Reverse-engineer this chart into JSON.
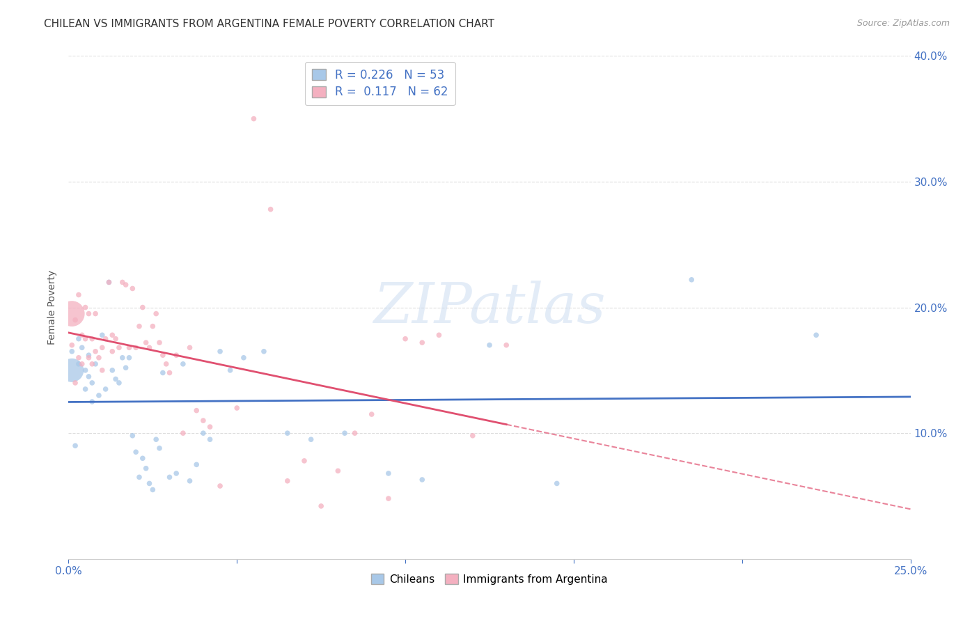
{
  "title": "CHILEAN VS IMMIGRANTS FROM ARGENTINA FEMALE POVERTY CORRELATION CHART",
  "source": "Source: ZipAtlas.com",
  "ylabel": "Female Poverty",
  "xmin": 0.0,
  "xmax": 0.25,
  "ymin": 0.0,
  "ymax": 0.4,
  "xticks": [
    0.0,
    0.05,
    0.1,
    0.15,
    0.2,
    0.25
  ],
  "yticks": [
    0.0,
    0.1,
    0.2,
    0.3,
    0.4
  ],
  "blue_series": {
    "name": "Chileans",
    "color": "#a8c8e8",
    "line_color": "#4472c4",
    "R": 0.226,
    "N": 53,
    "x": [
      0.001,
      0.001,
      0.002,
      0.003,
      0.003,
      0.004,
      0.005,
      0.005,
      0.006,
      0.006,
      0.007,
      0.007,
      0.008,
      0.009,
      0.01,
      0.011,
      0.012,
      0.013,
      0.014,
      0.015,
      0.016,
      0.017,
      0.018,
      0.019,
      0.02,
      0.021,
      0.022,
      0.023,
      0.024,
      0.025,
      0.026,
      0.027,
      0.028,
      0.03,
      0.032,
      0.034,
      0.036,
      0.038,
      0.04,
      0.042,
      0.045,
      0.048,
      0.052,
      0.058,
      0.065,
      0.072,
      0.082,
      0.095,
      0.105,
      0.125,
      0.145,
      0.185,
      0.222
    ],
    "y": [
      0.15,
      0.165,
      0.09,
      0.155,
      0.175,
      0.168,
      0.135,
      0.15,
      0.145,
      0.162,
      0.14,
      0.125,
      0.155,
      0.13,
      0.178,
      0.135,
      0.22,
      0.15,
      0.143,
      0.14,
      0.16,
      0.152,
      0.16,
      0.098,
      0.085,
      0.065,
      0.08,
      0.072,
      0.06,
      0.055,
      0.095,
      0.088,
      0.148,
      0.065,
      0.068,
      0.155,
      0.062,
      0.075,
      0.1,
      0.095,
      0.165,
      0.15,
      0.16,
      0.165,
      0.1,
      0.095,
      0.1,
      0.068,
      0.063,
      0.17,
      0.06,
      0.222,
      0.178
    ],
    "sizes": [
      600,
      30,
      30,
      30,
      30,
      30,
      30,
      30,
      30,
      30,
      30,
      30,
      30,
      30,
      30,
      30,
      30,
      30,
      30,
      30,
      30,
      30,
      30,
      30,
      30,
      30,
      30,
      30,
      30,
      30,
      30,
      30,
      30,
      30,
      30,
      30,
      30,
      30,
      30,
      30,
      30,
      30,
      30,
      30,
      30,
      30,
      30,
      30,
      30,
      30,
      30,
      30,
      30
    ]
  },
  "pink_series": {
    "name": "Immigrants from Argentina",
    "color": "#f4b0c0",
    "line_color": "#e05070",
    "R": 0.117,
    "N": 62,
    "x": [
      0.001,
      0.001,
      0.002,
      0.002,
      0.003,
      0.003,
      0.004,
      0.004,
      0.005,
      0.005,
      0.006,
      0.006,
      0.007,
      0.007,
      0.008,
      0.008,
      0.009,
      0.01,
      0.01,
      0.011,
      0.012,
      0.013,
      0.013,
      0.014,
      0.015,
      0.016,
      0.017,
      0.018,
      0.019,
      0.02,
      0.021,
      0.022,
      0.023,
      0.024,
      0.025,
      0.026,
      0.027,
      0.028,
      0.029,
      0.03,
      0.032,
      0.034,
      0.036,
      0.038,
      0.04,
      0.042,
      0.045,
      0.05,
      0.055,
      0.06,
      0.065,
      0.07,
      0.075,
      0.08,
      0.085,
      0.09,
      0.095,
      0.1,
      0.105,
      0.11,
      0.12,
      0.13
    ],
    "y": [
      0.195,
      0.17,
      0.19,
      0.14,
      0.16,
      0.21,
      0.178,
      0.155,
      0.175,
      0.2,
      0.16,
      0.195,
      0.155,
      0.175,
      0.165,
      0.195,
      0.16,
      0.15,
      0.168,
      0.175,
      0.22,
      0.178,
      0.165,
      0.175,
      0.168,
      0.22,
      0.218,
      0.168,
      0.215,
      0.168,
      0.185,
      0.2,
      0.172,
      0.168,
      0.185,
      0.195,
      0.172,
      0.162,
      0.155,
      0.148,
      0.162,
      0.1,
      0.168,
      0.118,
      0.11,
      0.105,
      0.058,
      0.12,
      0.35,
      0.278,
      0.062,
      0.078,
      0.042,
      0.07,
      0.1,
      0.115,
      0.048,
      0.175,
      0.172,
      0.178,
      0.098,
      0.17
    ],
    "sizes": [
      700,
      30,
      30,
      30,
      30,
      30,
      30,
      30,
      30,
      30,
      30,
      30,
      30,
      30,
      30,
      30,
      30,
      30,
      30,
      30,
      30,
      30,
      30,
      30,
      30,
      30,
      30,
      30,
      30,
      30,
      30,
      30,
      30,
      30,
      30,
      30,
      30,
      30,
      30,
      30,
      30,
      30,
      30,
      30,
      30,
      30,
      30,
      30,
      30,
      30,
      30,
      30,
      30,
      30,
      30,
      30,
      30,
      30,
      30,
      30,
      30,
      30
    ]
  },
  "watermark_text": "ZIPatlas",
  "background_color": "#ffffff",
  "grid_color": "#dddddd",
  "title_fontsize": 11,
  "source_fontsize": 9,
  "right_yaxis_color": "#4472c4",
  "tick_color": "#4472c4",
  "legend_label_color": "#4472c4",
  "legend_fontsize": 12,
  "pink_line_solid_end": 0.13
}
